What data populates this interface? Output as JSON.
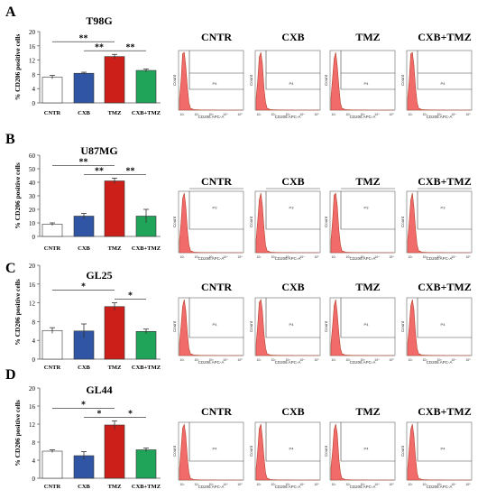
{
  "colors": {
    "cntr": "#ffffff",
    "cxb": "#2f55a4",
    "tmz": "#cc1f1a",
    "combo": "#1fa45a",
    "flow_fill": "#f26b6b",
    "flow_stroke": "#b5422c"
  },
  "axis_label": "% CD206 positive cells",
  "flow": {
    "x_label": "CD206 APC-A",
    "y_label": "Count",
    "gate_label": "P4",
    "gate_label_b": "P3",
    "tick_labels": [
      "10¹",
      "10²",
      "10³",
      "10⁴",
      "10⁵"
    ]
  },
  "chart_data": [
    {
      "type": "bar",
      "panel": "A",
      "title": "T98G",
      "categories": [
        "CNTR",
        "CXB",
        "TMZ",
        "CXB+TMZ"
      ],
      "values": [
        7.2,
        8.3,
        13.0,
        9.1
      ],
      "errors": [
        0.5,
        0.3,
        0.6,
        0.4
      ],
      "ylabel": "% CD206 positive cells",
      "ylim": [
        0,
        20
      ],
      "yticks": [
        0,
        4,
        8,
        12,
        16,
        20
      ],
      "significance": [
        {
          "from": 0,
          "to": 2,
          "label": "**"
        },
        {
          "from": 1,
          "to": 2,
          "label": "**"
        },
        {
          "from": 2,
          "to": 3,
          "label": "**"
        }
      ],
      "flow_titles": [
        "CNTR",
        "CXB",
        "TMZ",
        "CXB+TMZ"
      ]
    },
    {
      "type": "bar",
      "panel": "B",
      "title": "U87MG",
      "categories": [
        "CNTR",
        "CXB",
        "TMZ",
        "CXB+TMZ"
      ],
      "values": [
        9,
        15,
        41,
        15
      ],
      "errors": [
        1,
        2,
        2,
        5
      ],
      "ylabel": "% CD206 positive cells",
      "ylim": [
        0,
        60
      ],
      "yticks": [
        0,
        10,
        20,
        30,
        40,
        50,
        60
      ],
      "significance": [
        {
          "from": 0,
          "to": 2,
          "label": "**"
        },
        {
          "from": 1,
          "to": 2,
          "label": "**"
        },
        {
          "from": 2,
          "to": 3,
          "label": "**"
        }
      ],
      "flow_titles": [
        "CNTR",
        "CXB",
        "TMZ",
        "CXB+TMZ"
      ]
    },
    {
      "type": "bar",
      "panel": "C",
      "title": "GL25",
      "categories": [
        "CNTR",
        "CXB",
        "TMZ",
        "CXB+TMZ"
      ],
      "values": [
        6.1,
        6.0,
        11.2,
        5.9
      ],
      "errors": [
        0.6,
        1.5,
        0.8,
        0.5
      ],
      "ylabel": "% CD206 positive cells",
      "ylim": [
        0,
        20
      ],
      "yticks": [
        0,
        4,
        8,
        12,
        16,
        20
      ],
      "significance": [
        {
          "from": 0,
          "to": 2,
          "label": "*"
        },
        {
          "from": 2,
          "to": 3,
          "label": "*"
        }
      ],
      "flow_titles": [
        "CNTR",
        "CXB",
        "TMZ",
        "CXB+TMZ"
      ]
    },
    {
      "type": "bar",
      "panel": "D",
      "title": "GL44",
      "categories": [
        "CNTR",
        "CXB",
        "TMZ",
        "CXB+TMZ"
      ],
      "values": [
        6.0,
        5.0,
        11.8,
        6.3
      ],
      "errors": [
        0.3,
        0.9,
        0.9,
        0.4
      ],
      "ylabel": "% CD206 positive cells",
      "ylim": [
        0,
        20
      ],
      "yticks": [
        0,
        4,
        8,
        12,
        16,
        20
      ],
      "significance": [
        {
          "from": 0,
          "to": 2,
          "label": "*"
        },
        {
          "from": 1,
          "to": 2,
          "label": "*"
        },
        {
          "from": 2,
          "to": 3,
          "label": "*"
        }
      ],
      "flow_titles": [
        "CNTR",
        "CXB",
        "TMZ",
        "CXB+TMZ"
      ]
    }
  ]
}
